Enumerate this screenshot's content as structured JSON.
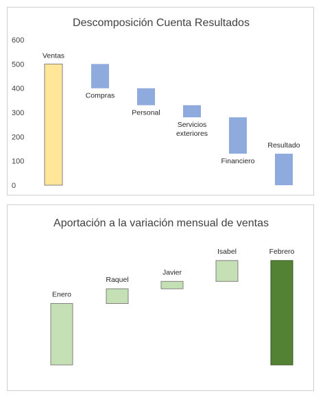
{
  "chart_data": [
    {
      "type": "bar",
      "subtype": "waterfall",
      "title": "Descomposición Cuenta Resultados",
      "xlabel": "",
      "ylabel": "",
      "ylim": [
        0,
        600
      ],
      "yticks": [
        "0",
        "100",
        "200",
        "300",
        "400",
        "500",
        "600"
      ],
      "grid": false,
      "legend": "none",
      "categories": [
        "Ventas",
        "Compras",
        "Personal",
        "Servicios exteriores",
        "Financiero",
        "Resultado"
      ],
      "bars": [
        {
          "label": "Ventas",
          "label_lines": [
            "Ventas"
          ],
          "start": 0,
          "end": 500,
          "color": "#FFE699",
          "stroke": "#7F7F7F",
          "label_pos": "above"
        },
        {
          "label": "Compras",
          "label_lines": [
            "Compras"
          ],
          "start": 400,
          "end": 500,
          "color": "#8FAADC",
          "stroke": "none",
          "label_pos": "below"
        },
        {
          "label": "Personal",
          "label_lines": [
            "Personal"
          ],
          "start": 330,
          "end": 400,
          "color": "#8FAADC",
          "stroke": "none",
          "label_pos": "below"
        },
        {
          "label": "Servicios exteriores",
          "label_lines": [
            "Servicios",
            "exteriores"
          ],
          "start": 280,
          "end": 330,
          "color": "#8FAADC",
          "stroke": "none",
          "label_pos": "below"
        },
        {
          "label": "Financiero",
          "label_lines": [
            "Financiero"
          ],
          "start": 130,
          "end": 280,
          "color": "#8FAADC",
          "stroke": "none",
          "label_pos": "below"
        },
        {
          "label": "Resultado",
          "label_lines": [
            "Resultado"
          ],
          "start": 0,
          "end": 130,
          "color": "#8FAADC",
          "stroke": "none",
          "label_pos": "above"
        }
      ]
    },
    {
      "type": "bar",
      "subtype": "waterfall",
      "title": "Aportación a la variación mensual de ventas",
      "xlabel": "",
      "ylabel": "",
      "axis_visible": false,
      "ylim": [
        0,
        100
      ],
      "grid": false,
      "legend": "none",
      "categories": [
        "Enero",
        "Raquel",
        "Javier",
        "Isabel",
        "Febrero"
      ],
      "bars": [
        {
          "label": "Enero",
          "start": 0,
          "end": 50,
          "color": "#C5E0B4",
          "stroke": "#7F7F7F"
        },
        {
          "label": "Raquel",
          "start": 50,
          "end": 62,
          "color": "#C5E0B4",
          "stroke": "#7F7F7F"
        },
        {
          "label": "Javier",
          "start": 62,
          "end": 68,
          "color": "#C5E0B4",
          "stroke": "#7F7F7F"
        },
        {
          "label": "Isabel",
          "start": 68,
          "end": 85,
          "color": "#C5E0B4",
          "stroke": "#7F7F7F"
        },
        {
          "label": "Febrero",
          "start": 0,
          "end": 85,
          "color": "#548235",
          "stroke": "#385723"
        }
      ]
    }
  ]
}
